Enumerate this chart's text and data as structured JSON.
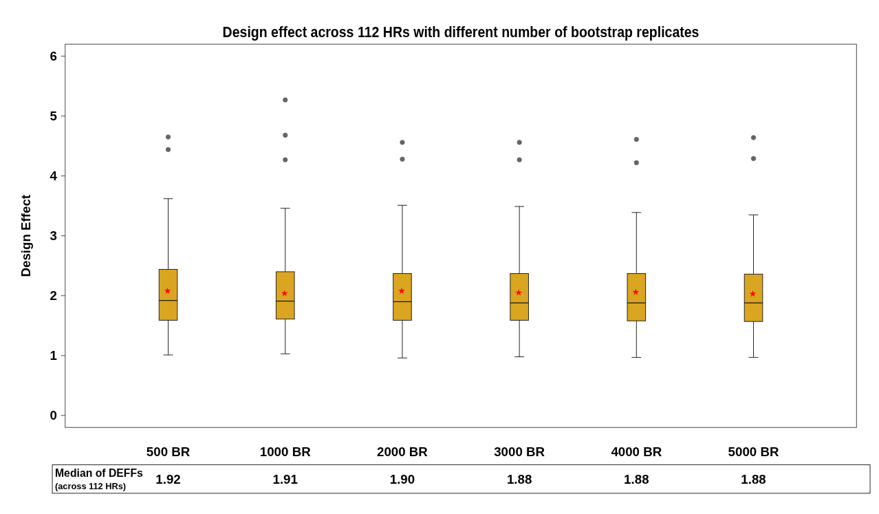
{
  "chart_data": {
    "type": "box",
    "title": "Design effect across 112 HRs with different number of bootstrap replicates",
    "ylabel": "Design Effect",
    "categories": [
      "500 BR",
      "1000 BR",
      "2000 BR",
      "3000 BR",
      "4000 BR",
      "5000 BR"
    ],
    "color": "#daa520",
    "boxes": [
      {
        "low": 1.01,
        "q1": 1.59,
        "median": 1.92,
        "q3": 2.44,
        "high": 3.62,
        "mean": 2.08,
        "outliers": [
          4.65,
          4.44
        ]
      },
      {
        "low": 1.03,
        "q1": 1.61,
        "median": 1.91,
        "q3": 2.4,
        "high": 3.46,
        "mean": 2.04,
        "outliers": [
          5.27,
          4.68,
          4.27
        ]
      },
      {
        "low": 0.96,
        "q1": 1.59,
        "median": 1.9,
        "q3": 2.37,
        "high": 3.51,
        "mean": 2.08,
        "outliers": [
          4.56,
          4.28
        ]
      },
      {
        "low": 0.98,
        "q1": 1.59,
        "median": 1.88,
        "q3": 2.37,
        "high": 3.49,
        "mean": 2.05,
        "outliers": [
          4.56,
          4.27
        ]
      },
      {
        "low": 0.97,
        "q1": 1.58,
        "median": 1.88,
        "q3": 2.37,
        "high": 3.39,
        "mean": 2.06,
        "outliers": [
          4.61,
          4.22
        ]
      },
      {
        "low": 0.97,
        "q1": 1.57,
        "median": 1.88,
        "q3": 2.36,
        "high": 3.35,
        "mean": 2.03,
        "outliers": [
          4.64,
          4.29
        ]
      }
    ],
    "value_labels": [
      "1.92",
      "1.91",
      "1.90",
      "1.88",
      "1.88",
      "1.88"
    ],
    "annotations": [
      "Median of DEFFs",
      "(across 112 HRs)"
    ],
    "ylim": [
      -0.2,
      6.2
    ],
    "yticks": [
      0,
      1,
      2,
      3,
      4,
      5,
      6
    ],
    "grid": false
  }
}
